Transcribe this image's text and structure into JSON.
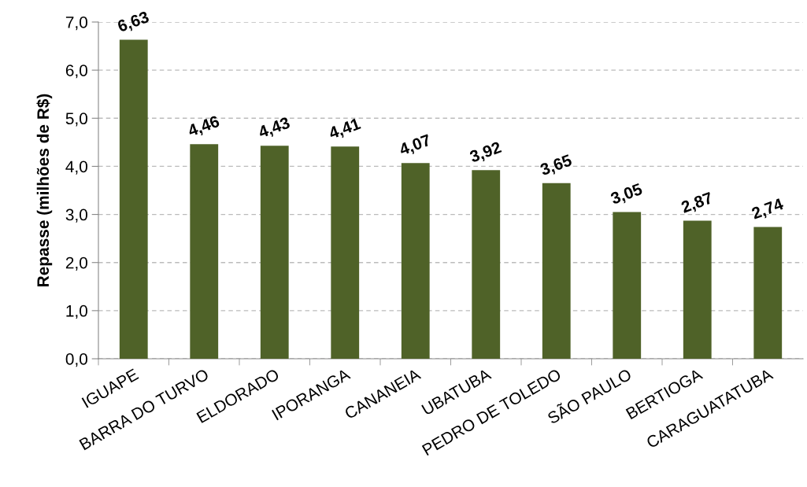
{
  "chart_data": {
    "type": "bar",
    "ylabel": "Repasse (milhões de R$)",
    "categories": [
      "IGUAPE",
      "BARRA DO TURVO",
      "ELDORADO",
      "IPORANGA",
      "CANANEIA",
      "UBATUBA",
      "PEDRO DE TOLEDO",
      "SÃO PAULO",
      "BERTIOGA",
      "CARAGUATATUBA"
    ],
    "values": [
      6.63,
      4.46,
      4.43,
      4.41,
      4.07,
      3.92,
      3.65,
      3.05,
      2.87,
      2.74
    ],
    "value_labels": [
      "6,63",
      "4,46",
      "4,43",
      "4,41",
      "4,07",
      "3,92",
      "3,65",
      "3,05",
      "2,87",
      "2,74"
    ],
    "color": "#4f6228",
    "ylim": [
      0,
      7
    ],
    "yticks": [
      {
        "value": 0,
        "label": "0,0"
      },
      {
        "value": 1,
        "label": "1,0"
      },
      {
        "value": 2,
        "label": "2,0"
      },
      {
        "value": 3,
        "label": "3,0"
      },
      {
        "value": 4,
        "label": "4,0"
      },
      {
        "value": 5,
        "label": "5,0"
      },
      {
        "value": 6,
        "label": "6,0"
      },
      {
        "value": 7,
        "label": "7,0"
      }
    ],
    "grid": "y",
    "legend": false
  }
}
